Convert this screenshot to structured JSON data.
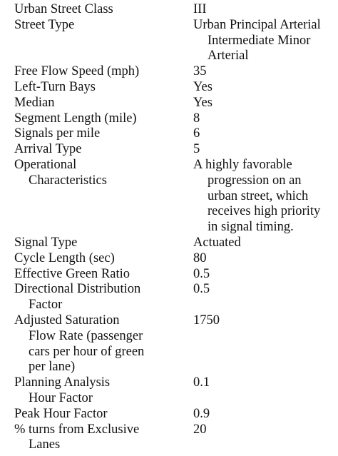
{
  "rows": [
    {
      "label": [
        "Urban Street Class"
      ],
      "value": [
        "III"
      ]
    },
    {
      "label": [
        "Street Type"
      ],
      "value": [
        "Urban Principal Arterial",
        "Intermediate Minor",
        "Arterial"
      ]
    },
    {
      "label": [
        "Free Flow Speed (mph)"
      ],
      "value": [
        "35"
      ]
    },
    {
      "label": [
        "Left-Turn Bays"
      ],
      "value": [
        "Yes"
      ]
    },
    {
      "label": [
        "Median"
      ],
      "value": [
        "Yes"
      ]
    },
    {
      "label": [
        "Segment Length (mile)"
      ],
      "value": [
        "8"
      ]
    },
    {
      "label": [
        "Signals per mile"
      ],
      "value": [
        "6"
      ]
    },
    {
      "label": [
        "Arrival Type"
      ],
      "value": [
        "5"
      ]
    },
    {
      "label": [
        "Operational",
        "Characteristics"
      ],
      "value": [
        "A highly favorable",
        "progression on an",
        "urban street, which",
        "receives high priority",
        "in signal timing."
      ]
    },
    {
      "label": [
        "Signal Type"
      ],
      "value": [
        "Actuated"
      ]
    },
    {
      "label": [
        "Cycle Length (sec)"
      ],
      "value": [
        "80"
      ]
    },
    {
      "label": [
        "Effective Green Ratio"
      ],
      "value": [
        "0.5"
      ]
    },
    {
      "label": [
        "Directional Distribution",
        "Factor"
      ],
      "value": [
        "0.5"
      ]
    },
    {
      "label": [
        "Adjusted Saturation",
        "Flow Rate (passenger",
        "cars per hour of green",
        "per lane)"
      ],
      "value": [
        "1750"
      ]
    },
    {
      "label": [
        "Planning Analysis",
        "Hour Factor"
      ],
      "value": [
        "0.1"
      ]
    },
    {
      "label": [
        "Peak Hour Factor"
      ],
      "value": [
        "0.9"
      ]
    },
    {
      "label": [
        "% turns from Exclusive",
        "Lanes"
      ],
      "value": [
        "20"
      ]
    }
  ]
}
